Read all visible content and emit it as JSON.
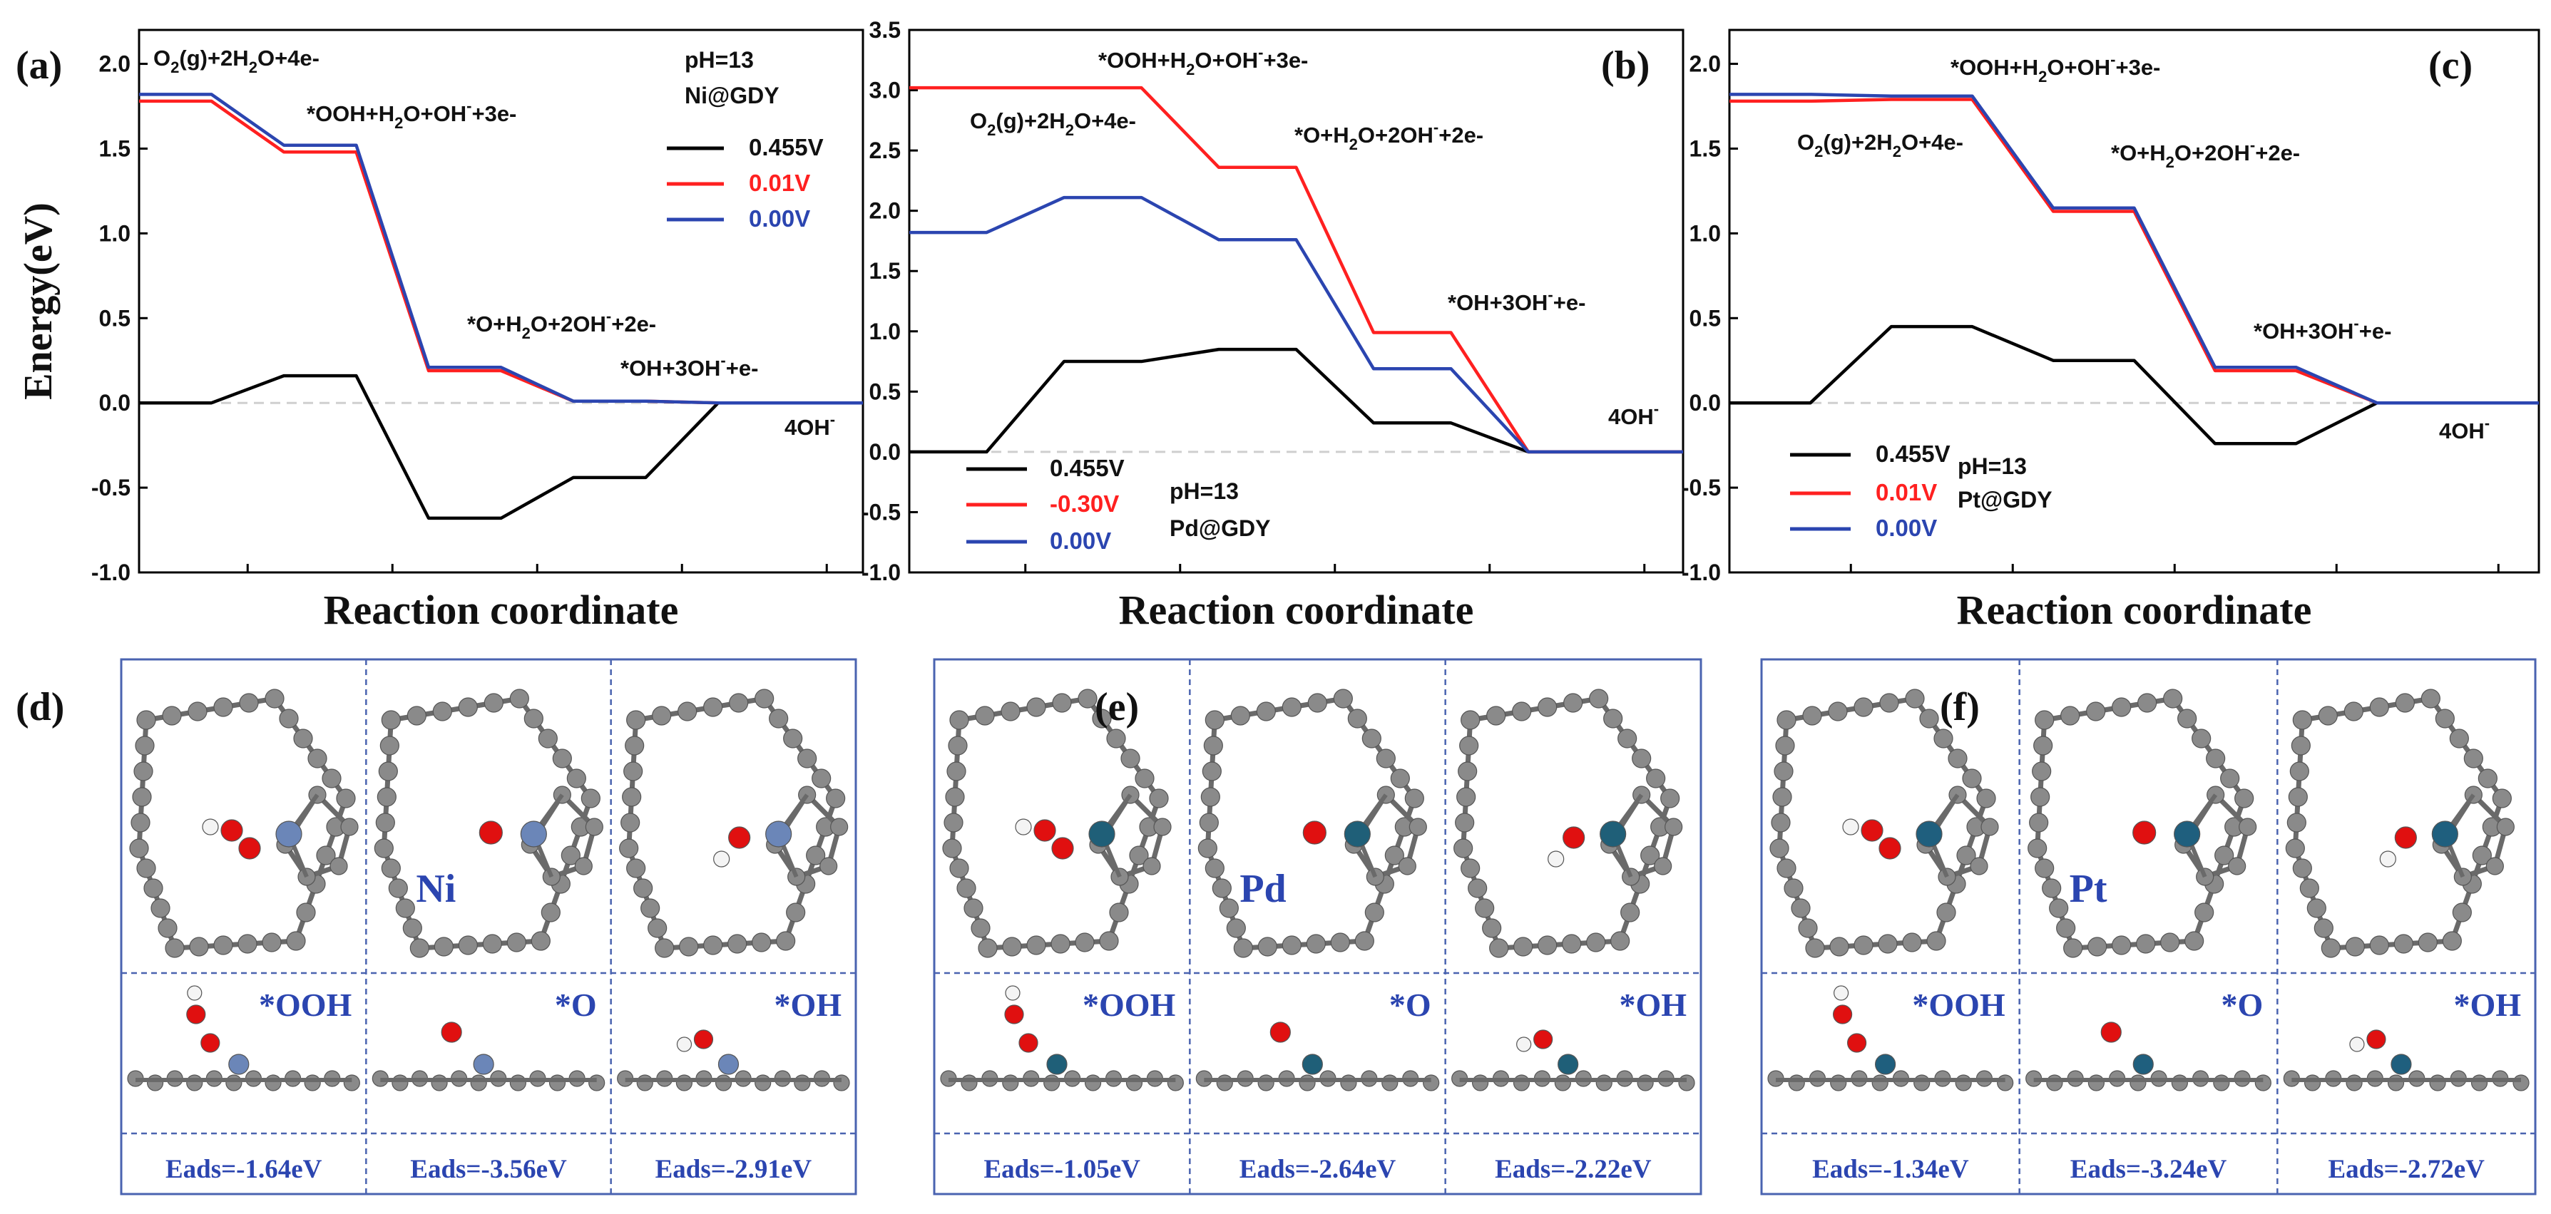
{
  "chart_data": [
    {
      "type": "line",
      "panel": "(a)",
      "catalyst": "Ni@GDY",
      "ph": "pH=13",
      "xlabel": "Reaction coordinate",
      "ylabel": "Energy(eV)",
      "ylim": [
        -1.0,
        2.2
      ],
      "ytick_labels": [
        "-1.0",
        "-0.5",
        "0.0",
        "0.5",
        "1.0",
        "1.5",
        "2.0"
      ],
      "states": [
        "O2(g)+2H2O+4e-",
        "*OOH+H2O+OH-+3e-",
        "*O+H2O+2OH-+2e-",
        "*OH+3OH-+e-",
        "4OH-"
      ],
      "series": [
        {
          "name": "0.455V",
          "color": "#000000",
          "values": [
            0.0,
            0.16,
            -0.68,
            -0.44,
            0.0
          ]
        },
        {
          "name": "0.01V",
          "color": "#ff2020",
          "values": [
            1.78,
            1.48,
            0.19,
            0.01,
            0.0
          ]
        },
        {
          "name": "0.00V",
          "color": "#2b45b0",
          "values": [
            1.82,
            1.52,
            0.21,
            0.01,
            0.0
          ]
        }
      ]
    },
    {
      "type": "line",
      "panel": "(b)",
      "catalyst": "Pd@GDY",
      "ph": "pH=13",
      "xlabel": "Reaction coordinate",
      "ylabel": "",
      "ylim": [
        -1.0,
        3.5
      ],
      "ytick_labels": [
        "-1.0",
        "-0.5",
        "0.0",
        "0.5",
        "1.0",
        "1.5",
        "2.0",
        "2.5",
        "3.0",
        "3.5"
      ],
      "states": [
        "O2(g)+2H2O+4e-",
        "*OOH+H2O+OH-+3e-",
        "*O+H2O+2OH-+2e-",
        "*OH+3OH-+e-",
        "4OH-"
      ],
      "series": [
        {
          "name": "0.455V",
          "color": "#000000",
          "values": [
            0.0,
            0.75,
            0.85,
            0.24,
            0.0
          ]
        },
        {
          "name": "-0.30V",
          "color": "#ff2020",
          "values": [
            3.02,
            3.02,
            2.36,
            0.99,
            0.0
          ]
        },
        {
          "name": "0.00V",
          "color": "#2b45b0",
          "values": [
            1.82,
            2.11,
            1.76,
            0.69,
            0.0
          ]
        }
      ]
    },
    {
      "type": "line",
      "panel": "(c)",
      "catalyst": "Pt@GDY",
      "ph": "pH=13",
      "xlabel": "Reaction coordinate",
      "ylabel": "",
      "ylim": [
        -1.0,
        2.2
      ],
      "ytick_labels": [
        "-1.0",
        "-0.5",
        "0.0",
        "0.5",
        "1.0",
        "1.5",
        "2.0"
      ],
      "states": [
        "O2(g)+2H2O+4e-",
        "*OOH+H2O+OH-+3e-",
        "*O+H2O+2OH-+2e-",
        "*OH+3OH-+e-",
        "4OH-"
      ],
      "series": [
        {
          "name": "0.455V",
          "color": "#000000",
          "values": [
            0.0,
            0.45,
            0.25,
            -0.24,
            0.0
          ]
        },
        {
          "name": "0.01V",
          "color": "#ff2020",
          "values": [
            1.78,
            1.79,
            1.13,
            0.19,
            0.0
          ]
        },
        {
          "name": "0.00V",
          "color": "#2b45b0",
          "values": [
            1.82,
            1.81,
            1.15,
            0.21,
            0.0
          ]
        }
      ]
    }
  ],
  "structures": [
    {
      "panel": "(d)",
      "metal_label": "Ni",
      "metal_color": "#6b86b8",
      "adsorbates": [
        "*OOH",
        "*O",
        "*OH"
      ],
      "eads": [
        "Eads=-1.64eV",
        "Eads=-3.56eV",
        "Eads=-2.91eV"
      ]
    },
    {
      "panel": "(e)",
      "metal_label": "Pd",
      "metal_color": "#1f5f78",
      "adsorbates": [
        "*OOH",
        "*O",
        "*OH"
      ],
      "eads": [
        "Eads=-1.05eV",
        "Eads=-2.64eV",
        "Eads=-2.22eV"
      ]
    },
    {
      "panel": "(f)",
      "metal_label": "Pt",
      "metal_color": "#1f5f7e",
      "adsorbates": [
        "*OOH",
        "*O",
        "*OH"
      ],
      "eads": [
        "Eads=-1.34eV",
        "Eads=-3.24eV",
        "Eads=-2.72eV"
      ]
    }
  ],
  "colors": {
    "frame": "#4a63b0",
    "label_blue": "#2b45b0",
    "red": "#ff2020",
    "atom_c": "#8a8a8a",
    "atom_o": "#e01010",
    "atom_h": "#f4f4f4"
  }
}
